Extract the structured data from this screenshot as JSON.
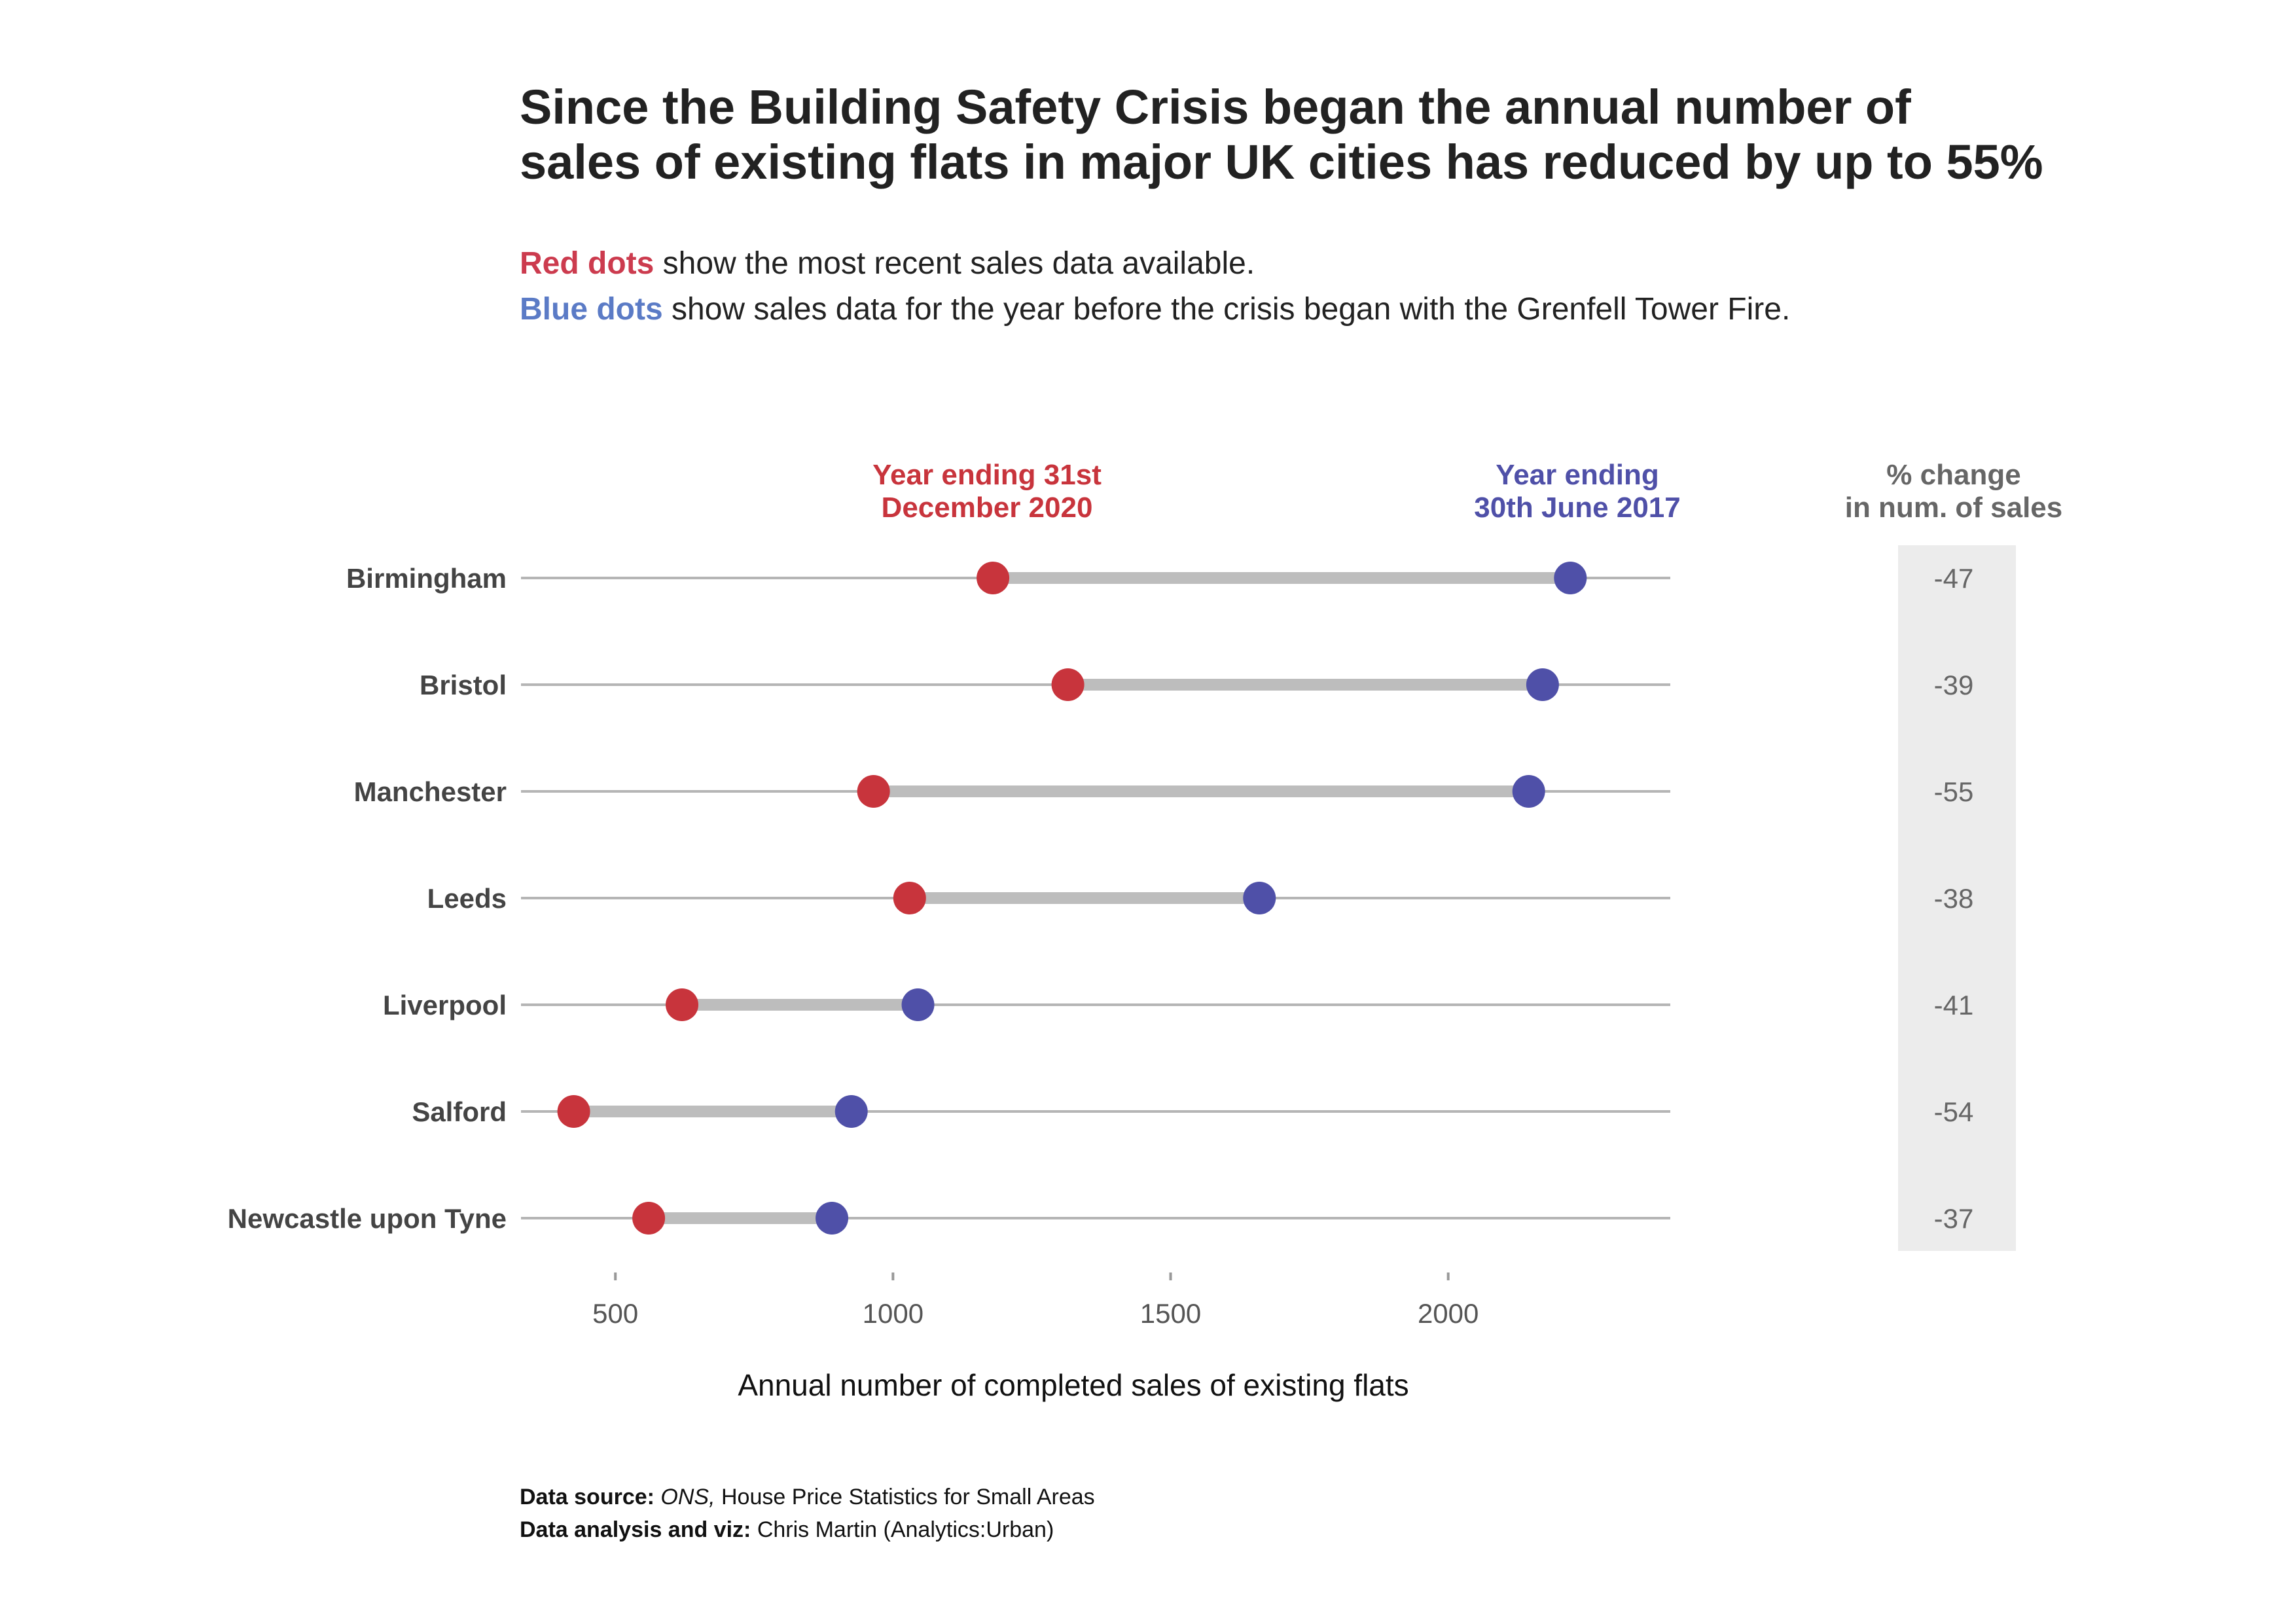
{
  "title_line1": "Since the Building Safety Crisis began the annual number of",
  "title_line2": "sales of existing flats in major UK cities has reduced by up to 55%",
  "subtitle": {
    "red_term": "Red dots",
    "red_text": " show the most recent sales data available.",
    "blue_term": "Blue dots",
    "blue_text": " show sales data for the year before the crisis began with the Grenfell Tower Fire."
  },
  "footer": {
    "source_label": "Data source:",
    "source_italic": "ONS,",
    "source_text": " House Price Statistics for Small Areas",
    "analysis_label": "Data analysis and viz:",
    "analysis_text": " Chris Martin (Analytics:Urban)"
  },
  "colors": {
    "recent": "#c8343c",
    "before": "#4f50a8",
    "connector": "#bdbdbd",
    "guide": "#b5b5b5",
    "pct_panel": "#ececec"
  },
  "chart_data": {
    "type": "dumbbell",
    "xlabel": "Annual number of completed sales of existing flats",
    "xlim": [
      330,
      2400
    ],
    "xticks": [
      500,
      1000,
      1500,
      2000
    ],
    "series": [
      {
        "name_line1": "Year ending 31st",
        "name_line2": "December 2020",
        "key": "recent"
      },
      {
        "name_line1": "Year ending",
        "name_line2": "30th June 2017",
        "key": "before"
      }
    ],
    "pct_header_line1": "% change",
    "pct_header_line2": "in num. of sales",
    "rows": [
      {
        "city": "Birmingham",
        "recent": 1180,
        "before": 2220,
        "pct": "-47"
      },
      {
        "city": "Bristol",
        "recent": 1315,
        "before": 2170,
        "pct": "-39"
      },
      {
        "city": "Manchester",
        "recent": 965,
        "before": 2145,
        "pct": "-55"
      },
      {
        "city": "Leeds",
        "recent": 1030,
        "before": 1660,
        "pct": "-38"
      },
      {
        "city": "Liverpool",
        "recent": 620,
        "before": 1045,
        "pct": "-41"
      },
      {
        "city": "Salford",
        "recent": 425,
        "before": 925,
        "pct": "-54"
      },
      {
        "city": "Newcastle upon Tyne",
        "recent": 560,
        "before": 890,
        "pct": "-37"
      }
    ]
  }
}
